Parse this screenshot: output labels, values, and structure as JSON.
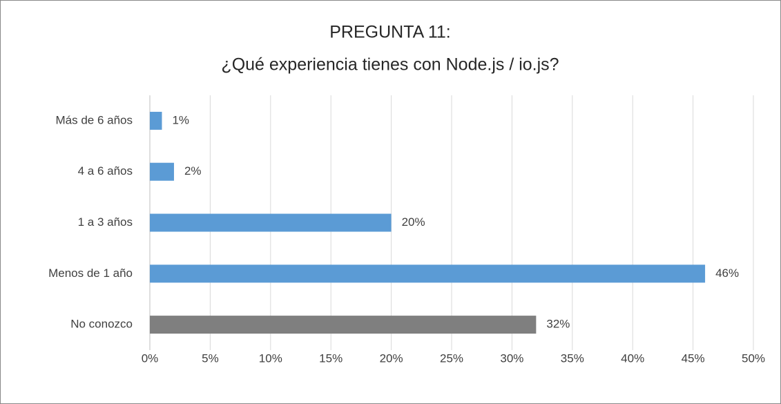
{
  "chart_data": {
    "type": "bar",
    "orientation": "horizontal",
    "title": "PREGUNTA 11:",
    "subtitle": "¿Qué experiencia tienes con Node.js / io.js?",
    "categories": [
      "Más de 6 años",
      "4 a 6 años",
      "1 a 3 años",
      "Menos de 1 año",
      "No conozco"
    ],
    "values": [
      1,
      2,
      20,
      46,
      32
    ],
    "value_labels": [
      "1%",
      "2%",
      "20%",
      "46%",
      "32%"
    ],
    "colors": [
      "#5b9bd5",
      "#5b9bd5",
      "#5b9bd5",
      "#5b9bd5",
      "#7f7f7f"
    ],
    "xlim": [
      0,
      50
    ],
    "xticks": [
      {
        "value": 0,
        "label": "0%"
      },
      {
        "value": 5,
        "label": "5%"
      },
      {
        "value": 10,
        "label": "10%"
      },
      {
        "value": 15,
        "label": "15%"
      },
      {
        "value": 20,
        "label": "20%"
      },
      {
        "value": 25,
        "label": "25%"
      },
      {
        "value": 30,
        "label": "30%"
      },
      {
        "value": 35,
        "label": "35%"
      },
      {
        "value": 40,
        "label": "40%"
      },
      {
        "value": 45,
        "label": "45%"
      },
      {
        "value": 50,
        "label": "50%"
      }
    ],
    "grid": true
  }
}
